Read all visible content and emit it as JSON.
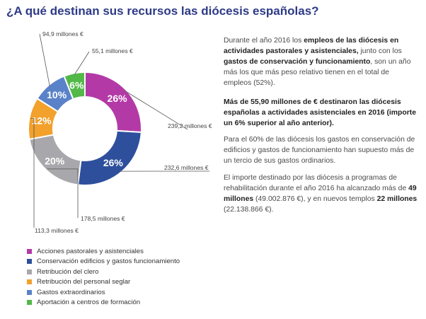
{
  "title": "¿A qué destinan sus recursos las diócesis españolas?",
  "chart_data": {
    "type": "pie",
    "donut": true,
    "title": "¿A qué destinan sus recursos las diócesis españolas?",
    "legend_position": "bottom-left",
    "slices": [
      {
        "name": "Acciones pastorales y asistenciales",
        "percent": 26,
        "percent_label": "26%",
        "amount_label": "239,2 millones €",
        "color": "#b33aa6"
      },
      {
        "name": "Conservación edificios y gastos funcionamiento",
        "percent": 26,
        "percent_label": "26%",
        "amount_label": "232,6 millones €",
        "color": "#2e4f9c"
      },
      {
        "name": "Retribución del clero",
        "percent": 20,
        "percent_label": "20%",
        "amount_label": "178,5 millones €",
        "color": "#a8a8ac"
      },
      {
        "name": "Retribución del personal seglar",
        "percent": 12,
        "percent_label": "12%",
        "amount_label": "113,3 millones €",
        "color": "#f2a12c"
      },
      {
        "name": "Gastos extraordinarios",
        "percent": 10,
        "percent_label": "10%",
        "amount_label": "94,9 millones €",
        "color": "#5a82c8"
      },
      {
        "name": "Aportación a centros de formación",
        "percent": 6,
        "percent_label": "6%",
        "amount_label": "55,1 millones €",
        "color": "#52b848"
      }
    ]
  },
  "text": {
    "p1": [
      {
        "t": "Durante el año 2016 los ",
        "b": false
      },
      {
        "t": "empleos de las diócesis en actividades pastorales y asistenciales,",
        "b": true
      },
      {
        "t": " junto con los ",
        "b": false
      },
      {
        "t": "gastos de conservación y funcionamiento",
        "b": true
      },
      {
        "t": ", son un año más los que más peso relativo tienen en el total de empleos (52%).",
        "b": false
      }
    ],
    "p2": [
      {
        "t": "Más de 55,90 millones de € destinaron las diócesis españolas a actividades asistenciales en 2016",
        "b": true
      },
      {
        "t": " (importe un 6% superior al año anterior).",
        "b": false
      }
    ],
    "p3": [
      {
        "t": "Para el 60% de las diócesis los gastos en conservación de edificios y gastos de funcionamiento han supuesto más de un tercio de sus gastos ordinarios.",
        "b": false
      }
    ],
    "p4": [
      {
        "t": "El importe destinado por las diócesis a programas de rehabilitación durante el año 2016 ha alcanzado más de ",
        "b": false
      },
      {
        "t": "49 millones",
        "b": true
      },
      {
        "t": " (49.002.876 €), y en nuevos templos ",
        "b": false
      },
      {
        "t": "22 millones",
        "b": true
      },
      {
        "t": " (22.138.866 €).",
        "b": false
      }
    ]
  }
}
